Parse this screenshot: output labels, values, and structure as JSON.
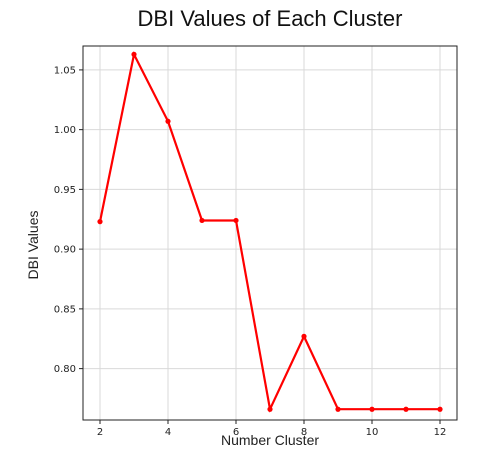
{
  "chart_data": {
    "type": "line",
    "title": "DBI Values of Each Cluster",
    "xlabel": "Number Cluster",
    "ylabel": "DBI Values",
    "x": [
      2,
      3,
      4,
      5,
      6,
      7,
      8,
      9,
      10,
      11,
      12
    ],
    "series": [
      {
        "values": [
          0.923,
          1.063,
          1.007,
          0.924,
          0.924,
          0.766,
          0.827,
          0.766,
          0.766,
          0.766,
          0.766
        ]
      }
    ],
    "xticks": [
      "2",
      "4",
      "6",
      "8",
      "10",
      "12"
    ],
    "yticks": [
      "0.80",
      "0.85",
      "0.90",
      "0.95",
      "1.00",
      "1.05"
    ],
    "xlim": [
      1.5,
      12.5
    ],
    "ylim": [
      0.757,
      1.07
    ],
    "grid": true,
    "line_color": "#ff0000",
    "grid_color": "#d9d9d9",
    "axis_color": "#222222"
  }
}
